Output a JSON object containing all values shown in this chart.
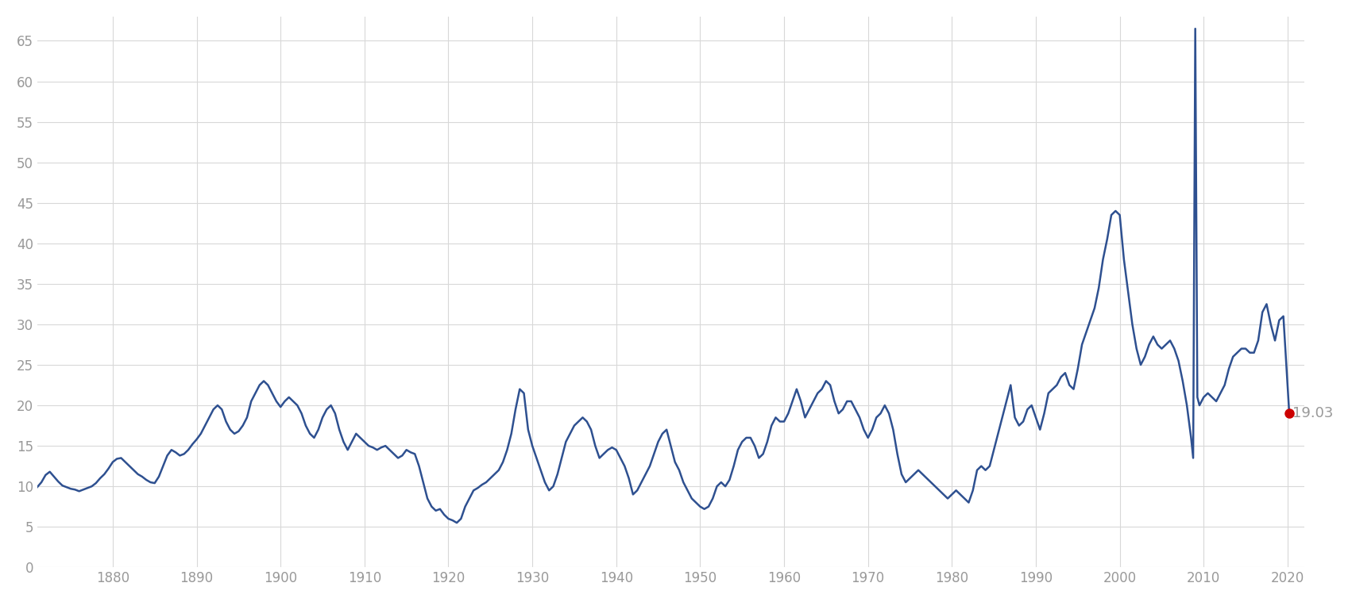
{
  "background_color": "#ffffff",
  "plot_bg_color": "#ffffff",
  "line_color": "#2e5090",
  "grid_color": "#d8d8d8",
  "line_width": 1.8,
  "endpoint_color": "#cc0000",
  "endpoint_value": 19.03,
  "endpoint_year": 2020.2,
  "tick_color": "#999999",
  "annotation_color": "#999999",
  "ylim": [
    0,
    68
  ],
  "xlim": [
    1871,
    2022
  ],
  "yticks": [
    0,
    5,
    10,
    15,
    20,
    25,
    30,
    35,
    40,
    45,
    50,
    55,
    60,
    65
  ],
  "xticks": [
    1880,
    1890,
    1900,
    1910,
    1920,
    1930,
    1940,
    1950,
    1960,
    1970,
    1980,
    1990,
    2000,
    2010,
    2020
  ],
  "annotation_text": "19.03",
  "annotation_fontsize": 13,
  "data": [
    [
      1871.0,
      9.9
    ],
    [
      1871.5,
      10.5
    ],
    [
      1872.0,
      11.4
    ],
    [
      1872.5,
      11.8
    ],
    [
      1873.0,
      11.2
    ],
    [
      1873.5,
      10.6
    ],
    [
      1874.0,
      10.1
    ],
    [
      1874.5,
      9.9
    ],
    [
      1875.0,
      9.7
    ],
    [
      1875.5,
      9.6
    ],
    [
      1876.0,
      9.4
    ],
    [
      1876.5,
      9.6
    ],
    [
      1877.0,
      9.8
    ],
    [
      1877.5,
      10.0
    ],
    [
      1878.0,
      10.4
    ],
    [
      1878.5,
      11.0
    ],
    [
      1879.0,
      11.5
    ],
    [
      1879.5,
      12.2
    ],
    [
      1880.0,
      13.0
    ],
    [
      1880.5,
      13.4
    ],
    [
      1881.0,
      13.5
    ],
    [
      1881.5,
      13.0
    ],
    [
      1882.0,
      12.5
    ],
    [
      1882.5,
      12.0
    ],
    [
      1883.0,
      11.5
    ],
    [
      1883.5,
      11.2
    ],
    [
      1884.0,
      10.8
    ],
    [
      1884.5,
      10.5
    ],
    [
      1885.0,
      10.4
    ],
    [
      1885.5,
      11.2
    ],
    [
      1886.0,
      12.5
    ],
    [
      1886.5,
      13.8
    ],
    [
      1887.0,
      14.5
    ],
    [
      1887.5,
      14.2
    ],
    [
      1888.0,
      13.8
    ],
    [
      1888.5,
      14.0
    ],
    [
      1889.0,
      14.5
    ],
    [
      1889.5,
      15.2
    ],
    [
      1890.0,
      15.8
    ],
    [
      1890.5,
      16.5
    ],
    [
      1891.0,
      17.5
    ],
    [
      1891.5,
      18.5
    ],
    [
      1892.0,
      19.5
    ],
    [
      1892.5,
      20.0
    ],
    [
      1893.0,
      19.5
    ],
    [
      1893.5,
      18.0
    ],
    [
      1894.0,
      17.0
    ],
    [
      1894.5,
      16.5
    ],
    [
      1895.0,
      16.8
    ],
    [
      1895.5,
      17.5
    ],
    [
      1896.0,
      18.5
    ],
    [
      1896.5,
      20.5
    ],
    [
      1897.0,
      21.5
    ],
    [
      1897.5,
      22.5
    ],
    [
      1898.0,
      23.0
    ],
    [
      1898.5,
      22.5
    ],
    [
      1899.0,
      21.5
    ],
    [
      1899.5,
      20.5
    ],
    [
      1900.0,
      19.8
    ],
    [
      1900.5,
      20.5
    ],
    [
      1901.0,
      21.0
    ],
    [
      1901.5,
      20.5
    ],
    [
      1902.0,
      20.0
    ],
    [
      1902.5,
      19.0
    ],
    [
      1903.0,
      17.5
    ],
    [
      1903.5,
      16.5
    ],
    [
      1904.0,
      16.0
    ],
    [
      1904.5,
      17.0
    ],
    [
      1905.0,
      18.5
    ],
    [
      1905.5,
      19.5
    ],
    [
      1906.0,
      20.0
    ],
    [
      1906.5,
      19.0
    ],
    [
      1907.0,
      17.0
    ],
    [
      1907.5,
      15.5
    ],
    [
      1908.0,
      14.5
    ],
    [
      1908.5,
      15.5
    ],
    [
      1909.0,
      16.5
    ],
    [
      1909.5,
      16.0
    ],
    [
      1910.0,
      15.5
    ],
    [
      1910.5,
      15.0
    ],
    [
      1911.0,
      14.8
    ],
    [
      1911.5,
      14.5
    ],
    [
      1912.0,
      14.8
    ],
    [
      1912.5,
      15.0
    ],
    [
      1913.0,
      14.5
    ],
    [
      1913.5,
      14.0
    ],
    [
      1914.0,
      13.5
    ],
    [
      1914.5,
      13.8
    ],
    [
      1915.0,
      14.5
    ],
    [
      1915.5,
      14.2
    ],
    [
      1916.0,
      14.0
    ],
    [
      1916.5,
      12.5
    ],
    [
      1917.0,
      10.5
    ],
    [
      1917.5,
      8.5
    ],
    [
      1918.0,
      7.5
    ],
    [
      1918.5,
      7.0
    ],
    [
      1919.0,
      7.2
    ],
    [
      1919.5,
      6.5
    ],
    [
      1920.0,
      6.0
    ],
    [
      1920.5,
      5.8
    ],
    [
      1921.0,
      5.5
    ],
    [
      1921.5,
      6.0
    ],
    [
      1922.0,
      7.5
    ],
    [
      1922.5,
      8.5
    ],
    [
      1923.0,
      9.5
    ],
    [
      1923.5,
      9.8
    ],
    [
      1924.0,
      10.2
    ],
    [
      1924.5,
      10.5
    ],
    [
      1925.0,
      11.0
    ],
    [
      1925.5,
      11.5
    ],
    [
      1926.0,
      12.0
    ],
    [
      1926.5,
      13.0
    ],
    [
      1927.0,
      14.5
    ],
    [
      1927.5,
      16.5
    ],
    [
      1928.0,
      19.5
    ],
    [
      1928.5,
      22.0
    ],
    [
      1929.0,
      21.5
    ],
    [
      1929.5,
      17.0
    ],
    [
      1930.0,
      15.0
    ],
    [
      1930.5,
      13.5
    ],
    [
      1931.0,
      12.0
    ],
    [
      1931.5,
      10.5
    ],
    [
      1932.0,
      9.5
    ],
    [
      1932.5,
      10.0
    ],
    [
      1933.0,
      11.5
    ],
    [
      1933.5,
      13.5
    ],
    [
      1934.0,
      15.5
    ],
    [
      1934.5,
      16.5
    ],
    [
      1935.0,
      17.5
    ],
    [
      1935.5,
      18.0
    ],
    [
      1936.0,
      18.5
    ],
    [
      1936.5,
      18.0
    ],
    [
      1937.0,
      17.0
    ],
    [
      1937.5,
      15.0
    ],
    [
      1938.0,
      13.5
    ],
    [
      1938.5,
      14.0
    ],
    [
      1939.0,
      14.5
    ],
    [
      1939.5,
      14.8
    ],
    [
      1940.0,
      14.5
    ],
    [
      1940.5,
      13.5
    ],
    [
      1941.0,
      12.5
    ],
    [
      1941.5,
      11.0
    ],
    [
      1942.0,
      9.0
    ],
    [
      1942.5,
      9.5
    ],
    [
      1943.0,
      10.5
    ],
    [
      1943.5,
      11.5
    ],
    [
      1944.0,
      12.5
    ],
    [
      1944.5,
      14.0
    ],
    [
      1945.0,
      15.5
    ],
    [
      1945.5,
      16.5
    ],
    [
      1946.0,
      17.0
    ],
    [
      1946.5,
      15.0
    ],
    [
      1947.0,
      13.0
    ],
    [
      1947.5,
      12.0
    ],
    [
      1948.0,
      10.5
    ],
    [
      1948.5,
      9.5
    ],
    [
      1949.0,
      8.5
    ],
    [
      1949.5,
      8.0
    ],
    [
      1950.0,
      7.5
    ],
    [
      1950.5,
      7.2
    ],
    [
      1951.0,
      7.5
    ],
    [
      1951.5,
      8.5
    ],
    [
      1952.0,
      10.0
    ],
    [
      1952.5,
      10.5
    ],
    [
      1953.0,
      10.0
    ],
    [
      1953.5,
      10.8
    ],
    [
      1954.0,
      12.5
    ],
    [
      1954.5,
      14.5
    ],
    [
      1955.0,
      15.5
    ],
    [
      1955.5,
      16.0
    ],
    [
      1956.0,
      16.0
    ],
    [
      1956.5,
      15.0
    ],
    [
      1957.0,
      13.5
    ],
    [
      1957.5,
      14.0
    ],
    [
      1958.0,
      15.5
    ],
    [
      1958.5,
      17.5
    ],
    [
      1959.0,
      18.5
    ],
    [
      1959.5,
      18.0
    ],
    [
      1960.0,
      18.0
    ],
    [
      1960.5,
      19.0
    ],
    [
      1961.0,
      20.5
    ],
    [
      1961.5,
      22.0
    ],
    [
      1962.0,
      20.5
    ],
    [
      1962.5,
      18.5
    ],
    [
      1963.0,
      19.5
    ],
    [
      1963.5,
      20.5
    ],
    [
      1964.0,
      21.5
    ],
    [
      1964.5,
      22.0
    ],
    [
      1965.0,
      23.0
    ],
    [
      1965.5,
      22.5
    ],
    [
      1966.0,
      20.5
    ],
    [
      1966.5,
      19.0
    ],
    [
      1967.0,
      19.5
    ],
    [
      1967.5,
      20.5
    ],
    [
      1968.0,
      20.5
    ],
    [
      1968.5,
      19.5
    ],
    [
      1969.0,
      18.5
    ],
    [
      1969.5,
      17.0
    ],
    [
      1970.0,
      16.0
    ],
    [
      1970.5,
      17.0
    ],
    [
      1971.0,
      18.5
    ],
    [
      1971.5,
      19.0
    ],
    [
      1972.0,
      20.0
    ],
    [
      1972.5,
      19.0
    ],
    [
      1973.0,
      17.0
    ],
    [
      1973.5,
      14.0
    ],
    [
      1974.0,
      11.5
    ],
    [
      1974.5,
      10.5
    ],
    [
      1975.0,
      11.0
    ],
    [
      1975.5,
      11.5
    ],
    [
      1976.0,
      12.0
    ],
    [
      1976.5,
      11.5
    ],
    [
      1977.0,
      11.0
    ],
    [
      1977.5,
      10.5
    ],
    [
      1978.0,
      10.0
    ],
    [
      1978.5,
      9.5
    ],
    [
      1979.0,
      9.0
    ],
    [
      1979.5,
      8.5
    ],
    [
      1980.0,
      9.0
    ],
    [
      1980.5,
      9.5
    ],
    [
      1981.0,
      9.0
    ],
    [
      1981.5,
      8.5
    ],
    [
      1982.0,
      8.0
    ],
    [
      1982.5,
      9.5
    ],
    [
      1983.0,
      12.0
    ],
    [
      1983.5,
      12.5
    ],
    [
      1984.0,
      12.0
    ],
    [
      1984.5,
      12.5
    ],
    [
      1985.0,
      14.5
    ],
    [
      1985.5,
      16.5
    ],
    [
      1986.0,
      18.5
    ],
    [
      1986.5,
      20.5
    ],
    [
      1987.0,
      22.5
    ],
    [
      1987.5,
      18.5
    ],
    [
      1988.0,
      17.5
    ],
    [
      1988.5,
      18.0
    ],
    [
      1989.0,
      19.5
    ],
    [
      1989.5,
      20.0
    ],
    [
      1990.0,
      18.5
    ],
    [
      1990.5,
      17.0
    ],
    [
      1991.0,
      19.0
    ],
    [
      1991.5,
      21.5
    ],
    [
      1992.0,
      22.0
    ],
    [
      1992.5,
      22.5
    ],
    [
      1993.0,
      23.5
    ],
    [
      1993.5,
      24.0
    ],
    [
      1994.0,
      22.5
    ],
    [
      1994.5,
      22.0
    ],
    [
      1995.0,
      24.5
    ],
    [
      1995.5,
      27.5
    ],
    [
      1996.0,
      29.0
    ],
    [
      1996.5,
      30.5
    ],
    [
      1997.0,
      32.0
    ],
    [
      1997.5,
      34.5
    ],
    [
      1998.0,
      38.0
    ],
    [
      1998.5,
      40.5
    ],
    [
      1999.0,
      43.5
    ],
    [
      1999.5,
      44.0
    ],
    [
      2000.0,
      43.5
    ],
    [
      2000.5,
      38.0
    ],
    [
      2001.0,
      34.0
    ],
    [
      2001.5,
      30.0
    ],
    [
      2002.0,
      27.0
    ],
    [
      2002.5,
      25.0
    ],
    [
      2003.0,
      26.0
    ],
    [
      2003.5,
      27.5
    ],
    [
      2004.0,
      28.5
    ],
    [
      2004.5,
      27.5
    ],
    [
      2005.0,
      27.0
    ],
    [
      2005.5,
      27.5
    ],
    [
      2006.0,
      28.0
    ],
    [
      2006.5,
      27.0
    ],
    [
      2007.0,
      25.5
    ],
    [
      2007.5,
      23.0
    ],
    [
      2008.0,
      20.0
    ],
    [
      2008.5,
      16.0
    ],
    [
      2008.75,
      13.5
    ],
    [
      2009.0,
      66.5
    ],
    [
      2009.25,
      21.0
    ],
    [
      2009.5,
      20.0
    ],
    [
      2010.0,
      21.0
    ],
    [
      2010.5,
      21.5
    ],
    [
      2011.0,
      21.0
    ],
    [
      2011.5,
      20.5
    ],
    [
      2012.0,
      21.5
    ],
    [
      2012.5,
      22.5
    ],
    [
      2013.0,
      24.5
    ],
    [
      2013.5,
      26.0
    ],
    [
      2014.0,
      26.5
    ],
    [
      2014.5,
      27.0
    ],
    [
      2015.0,
      27.0
    ],
    [
      2015.5,
      26.5
    ],
    [
      2016.0,
      26.5
    ],
    [
      2016.5,
      28.0
    ],
    [
      2017.0,
      31.5
    ],
    [
      2017.5,
      32.5
    ],
    [
      2018.0,
      30.0
    ],
    [
      2018.5,
      28.0
    ],
    [
      2019.0,
      30.5
    ],
    [
      2019.5,
      31.0
    ],
    [
      2020.2,
      19.03
    ]
  ]
}
